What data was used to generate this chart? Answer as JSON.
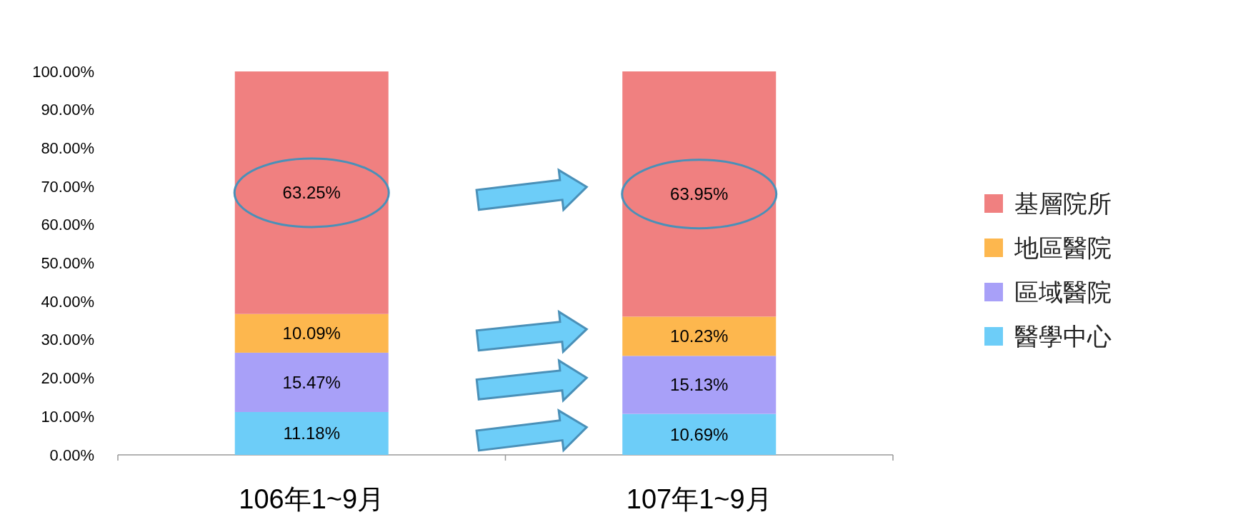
{
  "chart_data": {
    "type": "bar",
    "stacked": true,
    "categories": [
      "106年1~9月",
      "107年1~9月"
    ],
    "series": [
      {
        "name": "醫學中心",
        "color": "#6dcdf8",
        "values": [
          11.18,
          10.69
        ],
        "value_labels": [
          "11.18%",
          "10.69%"
        ]
      },
      {
        "name": "區域醫院",
        "color": "#a8a0f8",
        "values": [
          15.47,
          15.13
        ],
        "value_labels": [
          "15.47%",
          "15.13%"
        ]
      },
      {
        "name": "地區醫院",
        "color": "#fdb74e",
        "values": [
          10.09,
          10.23
        ],
        "value_labels": [
          "10.09%",
          "10.23%"
        ]
      },
      {
        "name": "基層院所",
        "color": "#f08080",
        "values": [
          63.25,
          63.95
        ],
        "value_labels": [
          "63.25%",
          "63.95%"
        ]
      }
    ],
    "ylim": [
      0,
      100
    ],
    "yticks": [
      {
        "value": 0,
        "label": "0.00%"
      },
      {
        "value": 10,
        "label": "10.00%"
      },
      {
        "value": 20,
        "label": "20.00%"
      },
      {
        "value": 30,
        "label": "30.00%"
      },
      {
        "value": 40,
        "label": "40.00%"
      },
      {
        "value": 50,
        "label": "50.00%"
      },
      {
        "value": 60,
        "label": "60.00%"
      },
      {
        "value": 70,
        "label": "70.00%"
      },
      {
        "value": 80,
        "label": "80.00%"
      },
      {
        "value": 90,
        "label": "90.00%"
      },
      {
        "value": 100,
        "label": "100.00%"
      }
    ],
    "legend": "right",
    "grid": false
  }
}
